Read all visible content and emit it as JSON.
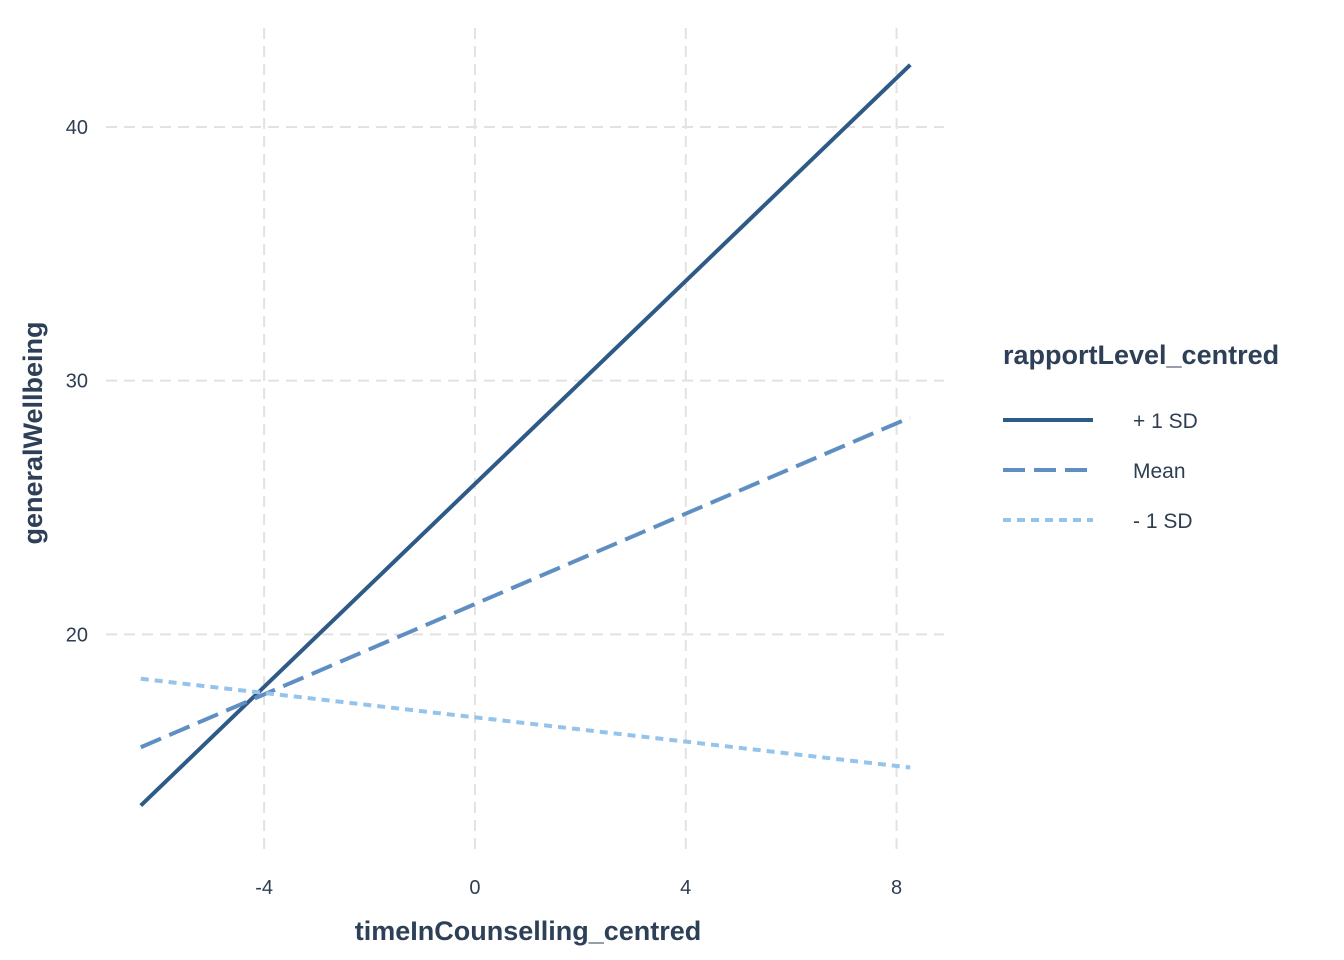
{
  "chart_data": {
    "type": "line",
    "title": "",
    "xlabel": "timeInCounselling_centred",
    "ylabel": "generalWellbeing",
    "xlim": [
      -7.0,
      8.9
    ],
    "ylim": [
      11.5,
      43.9
    ],
    "x_ticks": [
      -4,
      0,
      4,
      8
    ],
    "y_ticks": [
      20,
      30,
      40
    ],
    "grid": true,
    "legend": {
      "title": "rapportLevel_centred",
      "placement": "right"
    },
    "series": [
      {
        "name": "+ 1 SD",
        "style": "solid",
        "color": "#2e5a88",
        "x": [
          -6.34,
          8.26
        ],
        "y": [
          13.25,
          42.45
        ]
      },
      {
        "name": "Mean",
        "style": "dashed",
        "color": "#5f8fc2",
        "x": [
          -6.34,
          8.26
        ],
        "y": [
          15.55,
          28.55
        ]
      },
      {
        "name": "- 1 SD",
        "style": "dotted",
        "color": "#94c4ec",
        "x": [
          -6.34,
          8.26
        ],
        "y": [
          18.25,
          14.75
        ]
      }
    ]
  }
}
